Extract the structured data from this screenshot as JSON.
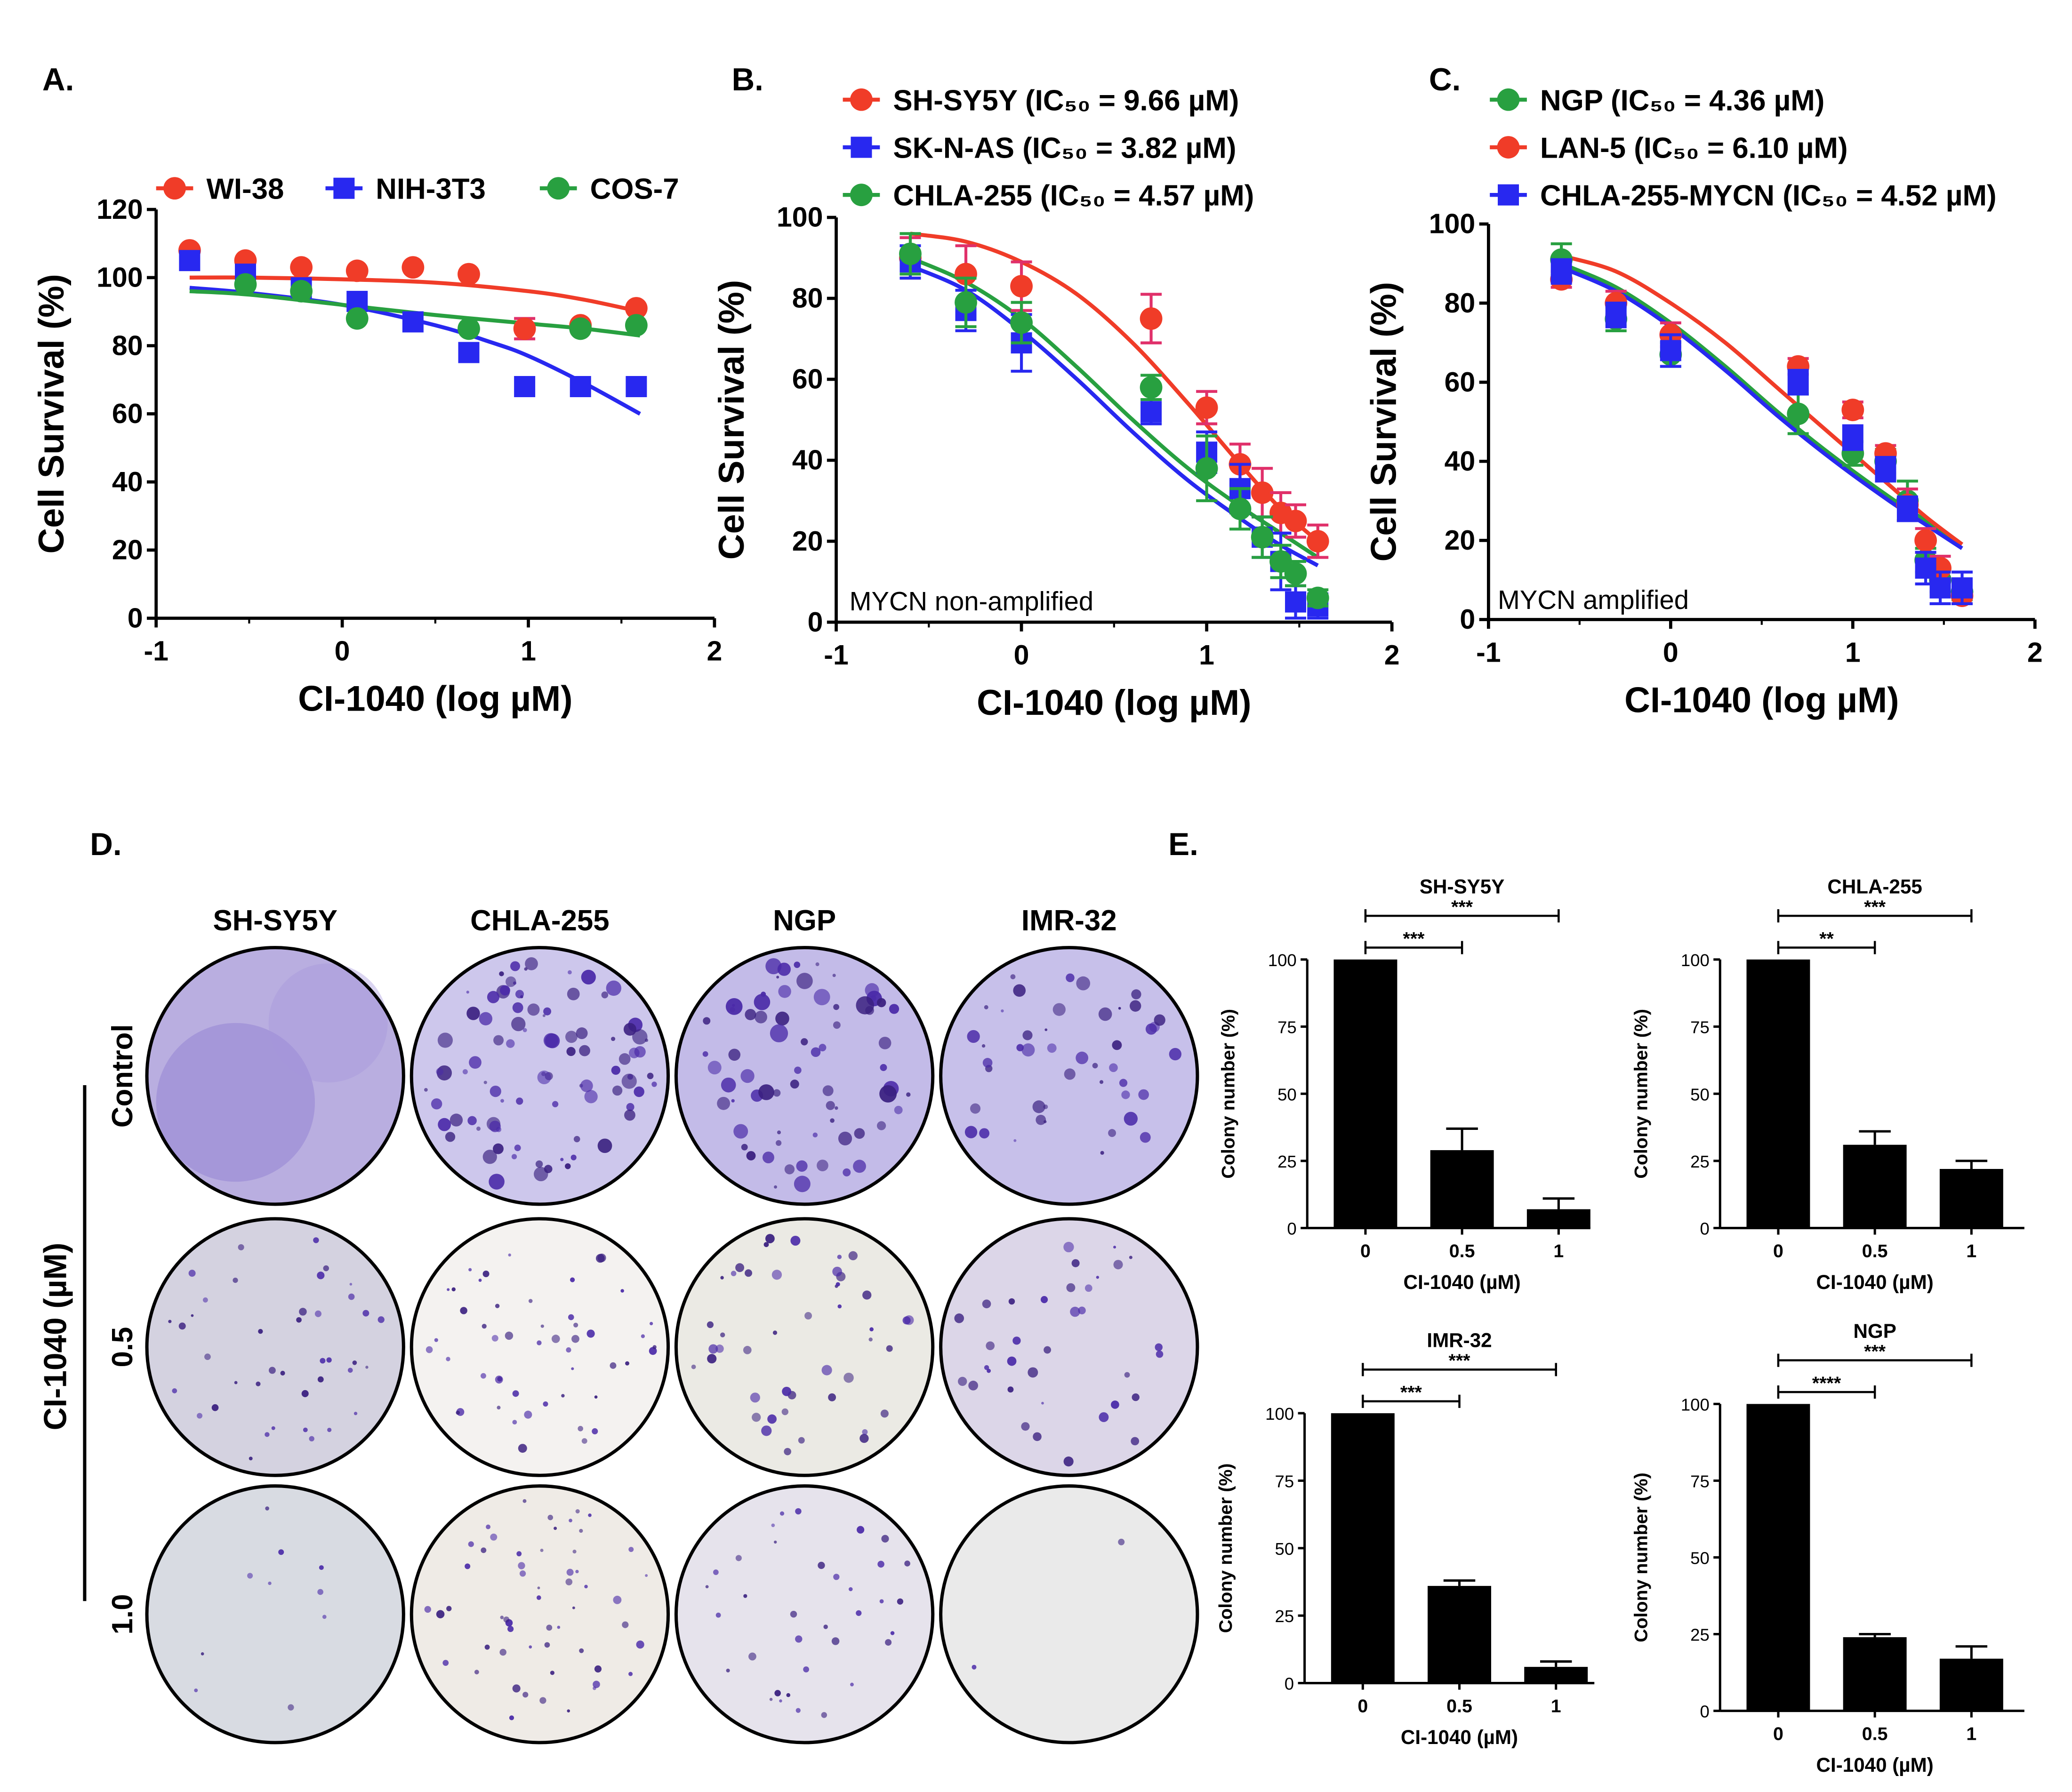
{
  "figure": {
    "background": "#ffffff"
  },
  "panels": {
    "A": "A.",
    "B": "B.",
    "C": "C.",
    "D": "D.",
    "E": "E."
  },
  "colors": {
    "red": "#f03c28",
    "blue": "#2828f0",
    "green": "#28a040",
    "errbar": "#e0306a",
    "black": "#000000"
  },
  "chart_data": [
    {
      "type": "scatter",
      "panel": "A",
      "title": "",
      "xlabel": "CI-1040 (log µM)",
      "ylabel": "Cell Survival (%)",
      "xlim": [
        -1,
        2
      ],
      "ylim": [
        0,
        120
      ],
      "xticks": [
        "-1",
        "0",
        "1",
        "2"
      ],
      "yticks": [
        "0",
        "20",
        "40",
        "60",
        "80",
        "100",
        "120"
      ],
      "legend": "top",
      "annotation": "",
      "series": [
        {
          "name": "WI-38",
          "color": "#f03c28",
          "marker": "circle",
          "x": [
            -0.82,
            -0.52,
            -0.22,
            0.08,
            0.38,
            0.68,
            0.98,
            1.28,
            1.58
          ],
          "y": [
            108,
            105,
            103,
            102,
            103,
            101,
            85,
            86,
            91
          ],
          "err": [
            0,
            0,
            0,
            0,
            0,
            0,
            3,
            0,
            0
          ],
          "fit": {
            "x": [
              -0.82,
              -0.5,
              0,
              0.5,
              1,
              1.3,
              1.6
            ],
            "y": [
              100,
              100,
              99.5,
              98.5,
              96,
              93.5,
              90
            ]
          }
        },
        {
          "name": "NIH-3T3",
          "color": "#2828f0",
          "marker": "square",
          "x": [
            -0.82,
            -0.52,
            -0.22,
            0.08,
            0.38,
            0.68,
            0.98,
            1.28,
            1.58
          ],
          "y": [
            105,
            101,
            97,
            93,
            87,
            78,
            68,
            68,
            68
          ],
          "err": [
            0,
            0,
            0,
            0,
            0,
            0,
            0,
            0,
            0
          ],
          "fit": {
            "x": [
              -0.82,
              -0.5,
              0,
              0.5,
              0.8,
              1,
              1.3,
              1.6
            ],
            "y": [
              97,
              95.5,
              92,
              86,
              81,
              77,
              69,
              60
            ]
          }
        },
        {
          "name": "COS-7",
          "color": "#28a040",
          "marker": "circle",
          "x": [
            -0.52,
            -0.22,
            0.08,
            0.68,
            1.28,
            1.58
          ],
          "y": [
            98,
            96,
            88,
            85,
            85,
            86
          ],
          "err": [
            0,
            0,
            0,
            0,
            0,
            0
          ],
          "fit": {
            "x": [
              -0.82,
              -0.5,
              0,
              0.5,
              1,
              1.3,
              1.6
            ],
            "y": [
              96,
              95,
              92,
              89,
              86.5,
              85,
              83
            ]
          }
        }
      ]
    },
    {
      "type": "scatter",
      "panel": "B",
      "title": "",
      "xlabel": "CI-1040 (log µM)",
      "ylabel": "Cell Survival (%)",
      "xlim": [
        -1,
        2
      ],
      "ylim": [
        0,
        100
      ],
      "xticks": [
        "-1",
        "0",
        "1",
        "2"
      ],
      "yticks": [
        "0",
        "20",
        "40",
        "60",
        "80",
        "100"
      ],
      "legend": "top-left",
      "annotation": "MYCN non-amplified",
      "series": [
        {
          "name": "SH-SY5Y (IC₅₀ = 9.66 µM)",
          "color": "#f03c28",
          "marker": "circle",
          "x": [
            -0.6,
            -0.3,
            0,
            0.7,
            1,
            1.18,
            1.3,
            1.4,
            1.48,
            1.6
          ],
          "y": [
            90,
            86,
            83,
            75,
            53,
            39,
            32,
            27,
            25,
            20
          ],
          "err": [
            5,
            7,
            6,
            6,
            4,
            5,
            6,
            5,
            4,
            4
          ],
          "fit": {
            "x": [
              -0.6,
              -0.3,
              0,
              0.3,
              0.6,
              0.9,
              1.2,
              1.4,
              1.6
            ],
            "y": [
              96,
              94,
              89,
              81,
              69,
              54,
              38,
              28,
              20
            ]
          }
        },
        {
          "name": "SK-N-AS (IC₅₀ = 3.82 µM)",
          "color": "#2828f0",
          "marker": "square",
          "x": [
            -0.6,
            -0.3,
            0,
            0.7,
            1,
            1.18,
            1.3,
            1.4,
            1.48,
            1.6
          ],
          "y": [
            89,
            77,
            69,
            52,
            42,
            33,
            21,
            15,
            5,
            4
          ],
          "err": [
            4,
            5,
            7,
            3,
            5,
            6,
            5,
            7,
            4,
            3
          ],
          "fit": {
            "x": [
              -0.6,
              -0.3,
              0,
              0.3,
              0.6,
              0.9,
              1.2,
              1.4,
              1.6
            ],
            "y": [
              88,
              82,
              72,
              60,
              47,
              35,
              25,
              19,
              14
            ]
          }
        },
        {
          "name": "CHLA-255 (IC₅₀ = 4.57 µM)",
          "color": "#28a040",
          "marker": "circle",
          "x": [
            -0.6,
            -0.3,
            0,
            0.7,
            1,
            1.18,
            1.3,
            1.4,
            1.48,
            1.6
          ],
          "y": [
            91,
            79,
            74,
            58,
            38,
            28,
            21,
            15,
            12,
            6
          ],
          "err": [
            5,
            6,
            5,
            3,
            8,
            5,
            5,
            4,
            3,
            2
          ],
          "fit": {
            "x": [
              -0.6,
              -0.3,
              0,
              0.3,
              0.6,
              0.9,
              1.2,
              1.4,
              1.6
            ],
            "y": [
              90,
              84,
              75,
              63,
              50,
              38,
              28,
              22,
              16
            ]
          }
        }
      ]
    },
    {
      "type": "scatter",
      "panel": "C",
      "title": "",
      "xlabel": "CI-1040 (log µM)",
      "ylabel": "Cell Survival (%)",
      "xlim": [
        -1,
        2
      ],
      "ylim": [
        0,
        100
      ],
      "xticks": [
        "-1",
        "0",
        "1",
        "2"
      ],
      "yticks": [
        "0",
        "20",
        "40",
        "60",
        "80",
        "100"
      ],
      "legend": "top-left",
      "annotation": "MYCN amplified",
      "series": [
        {
          "name": "NGP (IC₅₀ = 4.36 µM)",
          "color": "#28a040",
          "marker": "circle",
          "x": [
            -0.6,
            -0.3,
            0,
            0.7,
            1,
            1.18,
            1.3,
            1.4,
            1.48,
            1.6
          ],
          "y": [
            91,
            76,
            67,
            52,
            42,
            40,
            30,
            15,
            10,
            7
          ],
          "err": [
            4,
            3,
            3,
            5,
            3,
            3,
            5,
            3,
            3,
            2
          ],
          "fit": {
            "x": [
              -0.6,
              -0.3,
              0,
              0.3,
              0.6,
              0.9,
              1.2,
              1.4,
              1.6
            ],
            "y": [
              90,
              84,
              75,
              64,
              52,
              41,
              31,
              25,
              19
            ]
          }
        },
        {
          "name": "LAN-5 (IC₅₀ = 6.10 µM)",
          "color": "#f03c28",
          "marker": "circle",
          "x": [
            -0.6,
            -0.3,
            0,
            0.7,
            1,
            1.18,
            1.3,
            1.4,
            1.48,
            1.6
          ],
          "y": [
            86,
            80,
            72,
            64,
            53,
            42,
            29,
            20,
            13,
            6
          ],
          "err": [
            2,
            3,
            3,
            2,
            2,
            2,
            4,
            3,
            3,
            2
          ],
          "fit": {
            "x": [
              -0.6,
              -0.3,
              0,
              0.3,
              0.6,
              0.9,
              1.2,
              1.4,
              1.6
            ],
            "y": [
              92,
              88,
              80,
              70,
              58,
              46,
              34,
              26,
              19
            ]
          }
        },
        {
          "name": "CHLA-255-MYCN (IC₅₀ = 4.52 µM)",
          "color": "#2828f0",
          "marker": "square",
          "x": [
            -0.6,
            -0.3,
            0,
            0.7,
            1,
            1.18,
            1.3,
            1.4,
            1.48,
            1.6
          ],
          "y": [
            88,
            77,
            68,
            60,
            46,
            38,
            28,
            13,
            8,
            8
          ],
          "err": [
            3,
            3,
            4,
            3,
            3,
            3,
            3,
            4,
            4,
            4
          ],
          "fit": {
            "x": [
              -0.6,
              -0.3,
              0,
              0.3,
              0.6,
              0.9,
              1.2,
              1.4,
              1.6
            ],
            "y": [
              89,
              83,
              74,
              63,
              51,
              40,
              30,
              24,
              18
            ]
          }
        }
      ]
    },
    {
      "type": "bar",
      "panel": "E",
      "title": "SH-SY5Y",
      "categories": [
        "0",
        "0.5",
        "1"
      ],
      "values": [
        100,
        29,
        7
      ],
      "err": [
        0,
        8,
        4
      ],
      "xlabel": "CI-1040 (µM)",
      "ylabel": "Colony number (%)",
      "ylim": [
        0,
        100
      ],
      "yticks": [
        "0",
        "25",
        "50",
        "75",
        "100"
      ],
      "sig": [
        "***",
        "***"
      ]
    },
    {
      "type": "bar",
      "panel": "E",
      "title": "CHLA-255",
      "categories": [
        "0",
        "0.5",
        "1"
      ],
      "values": [
        100,
        31,
        22
      ],
      "err": [
        0,
        5,
        3
      ],
      "xlabel": "CI-1040 (µM)",
      "ylabel": "Colony number (%)",
      "ylim": [
        0,
        100
      ],
      "yticks": [
        "0",
        "25",
        "50",
        "75",
        "100"
      ],
      "sig": [
        "**",
        "***"
      ]
    },
    {
      "type": "bar",
      "panel": "E",
      "title": "IMR-32",
      "categories": [
        "0",
        "0.5",
        "1"
      ],
      "values": [
        100,
        36,
        6
      ],
      "err": [
        0,
        2,
        2
      ],
      "xlabel": "CI-1040 (µM)",
      "ylabel": "Colony number (%)",
      "ylim": [
        0,
        100
      ],
      "yticks": [
        "0",
        "25",
        "50",
        "75",
        "100"
      ],
      "sig": [
        "***",
        "***"
      ]
    },
    {
      "type": "bar",
      "panel": "E",
      "title": "NGP",
      "categories": [
        "0",
        "0.5",
        "1"
      ],
      "values": [
        100,
        24,
        17
      ],
      "err": [
        0,
        1,
        4
      ],
      "xlabel": "CI-1040 (µM)",
      "ylabel": "Colony number (%)",
      "ylim": [
        0,
        100
      ],
      "yticks": [
        "0",
        "25",
        "50",
        "75",
        "100"
      ],
      "sig": [
        "****",
        "***"
      ]
    }
  ],
  "colony_assay": {
    "columns": [
      "SH-SY5Y",
      "CHLA-255",
      "NGP",
      "IMR-32"
    ],
    "rows": [
      "Control",
      "0.5",
      "1.0"
    ],
    "group_label": "CI-1040 (µM)"
  }
}
